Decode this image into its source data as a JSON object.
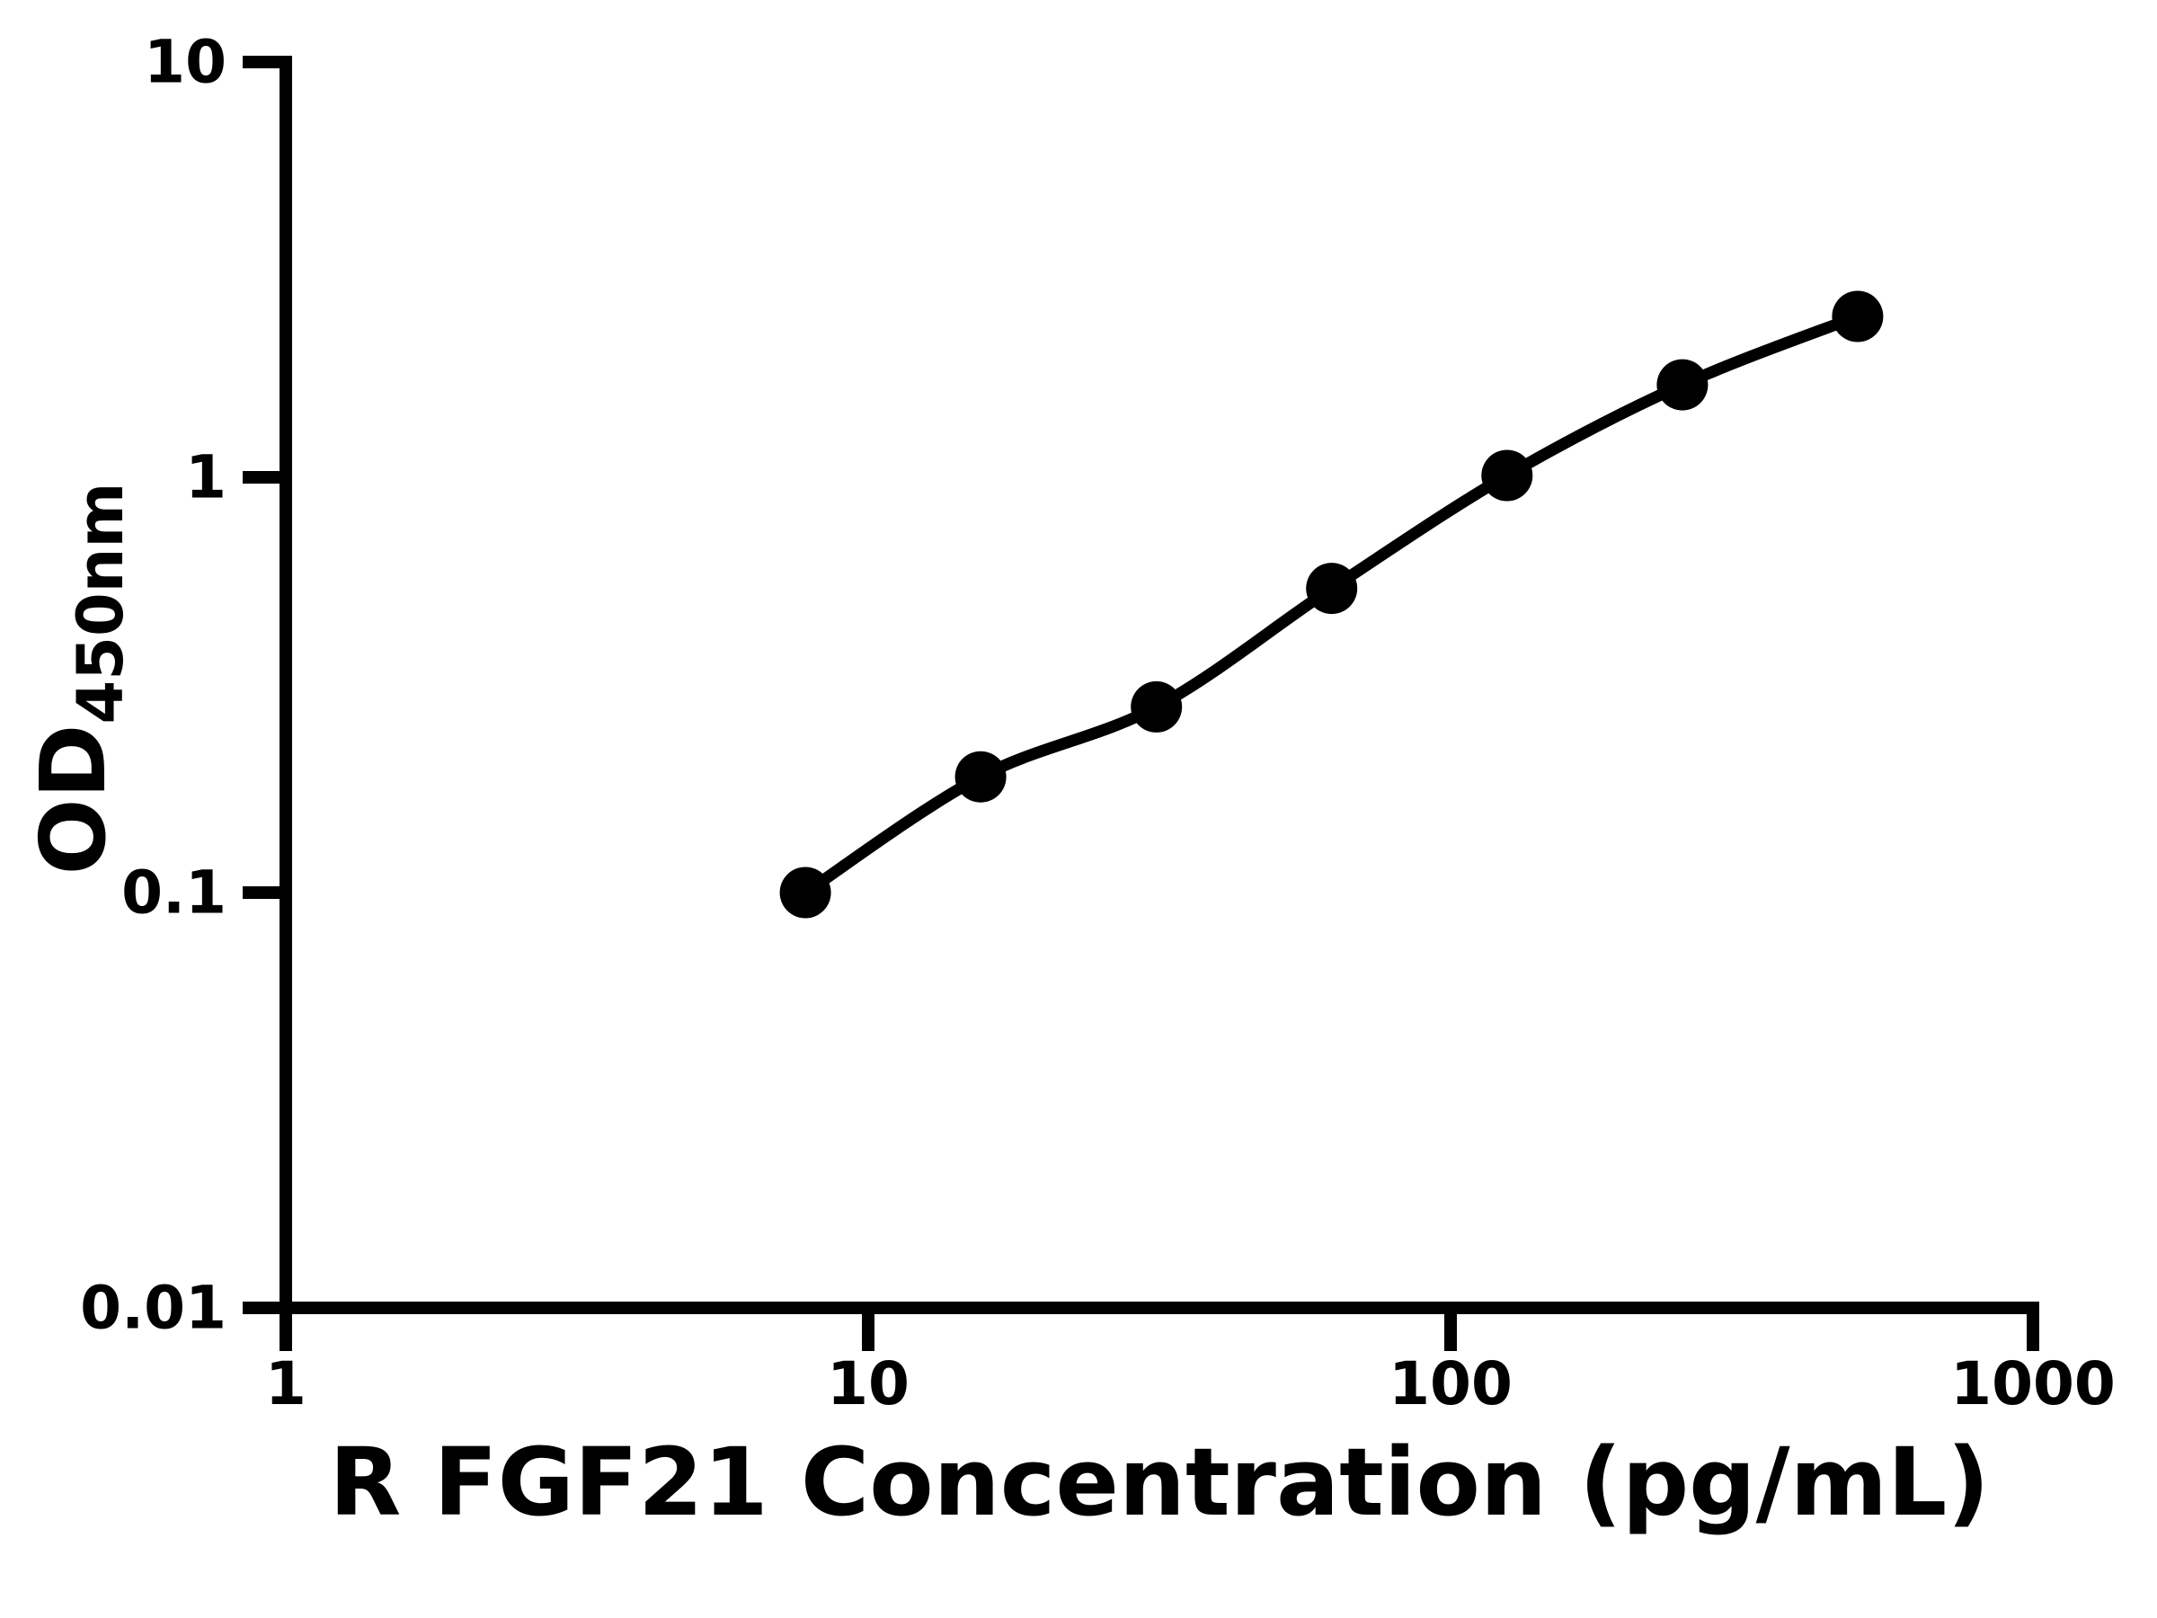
{
  "colors": {
    "background": "#ffffff",
    "axis": "#000000",
    "curve": "#000000",
    "marker": "#000000",
    "text": "#000000"
  },
  "chart_data": {
    "type": "scatter",
    "xlabel": "R FGF21 Concentration (pg/mL)",
    "ylabel_main": "OD",
    "ylabel_sub": "450nm",
    "x_axis": {
      "scale": "log",
      "min": 1,
      "max": 1000,
      "ticks": [
        1,
        10,
        100,
        1000
      ],
      "tick_labels": [
        "1",
        "10",
        "100",
        "1000"
      ]
    },
    "y_axis": {
      "scale": "log",
      "min": 0.01,
      "max": 10,
      "ticks": [
        0.01,
        0.1,
        1,
        10
      ],
      "tick_labels": [
        "0.01",
        "0.1",
        "1",
        "10"
      ]
    },
    "grid": false,
    "legend": false,
    "series": [
      {
        "marker": "filled-circle",
        "line": "smooth-fit",
        "points": [
          {
            "x": 7.8,
            "y": 0.1
          },
          {
            "x": 15.6,
            "y": 0.19
          },
          {
            "x": 31.25,
            "y": 0.28
          },
          {
            "x": 62.5,
            "y": 0.54
          },
          {
            "x": 125,
            "y": 1.01
          },
          {
            "x": 250,
            "y": 1.67
          },
          {
            "x": 500,
            "y": 2.44
          }
        ]
      }
    ]
  }
}
